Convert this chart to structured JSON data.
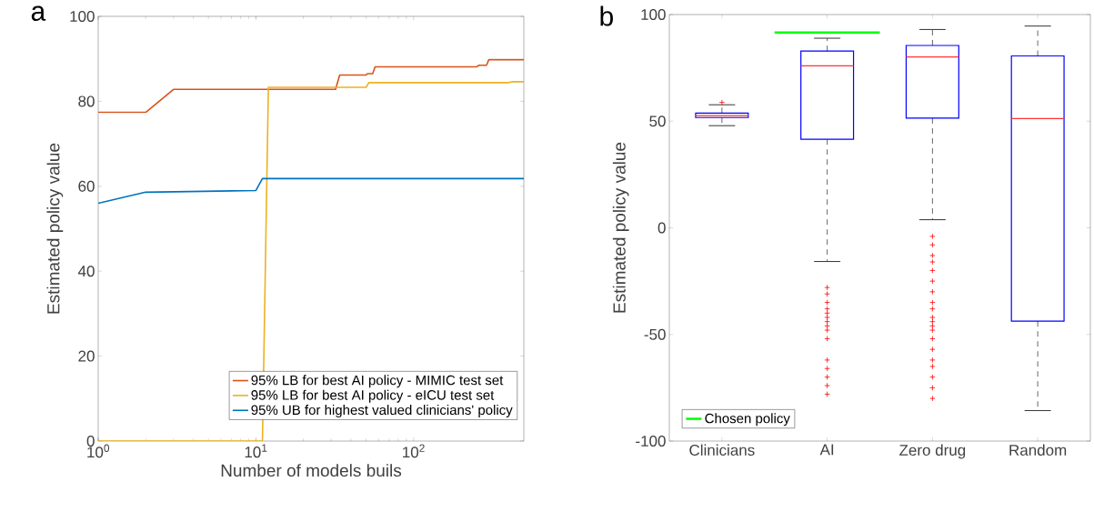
{
  "chart_data": [
    {
      "type": "line",
      "xlabel": "Number of models buils",
      "ylabel": "Estimated policy value",
      "log": "x",
      "xlim": [
        1,
        500
      ],
      "xticks": [
        {
          "value": 1,
          "label": "10$^{0}$"
        },
        {
          "value": 10,
          "label": "10$^{1}$"
        },
        {
          "value": 100,
          "label": "10$^{2}$"
        }
      ],
      "ylim": [
        0,
        100
      ],
      "yticks": [
        0,
        20,
        40,
        60,
        80,
        100
      ],
      "legend": "bottom right",
      "annotations": [
        "a"
      ],
      "series": [
        {
          "name": "95% LB for best AI policy - MIMIC test set",
          "color": "#d95319",
          "x": [
            1,
            2,
            3,
            32,
            34,
            50,
            51,
            55,
            57,
            250,
            260,
            290,
            300,
            500
          ],
          "values": [
            77.4,
            77.4,
            82.8,
            82.8,
            86.2,
            86.2,
            86.5,
            86.5,
            88.1,
            88.1,
            88.5,
            88.5,
            89.8,
            89.8
          ]
        },
        {
          "name": "95% LB for best AI policy - eICU test set",
          "color": "#edb120",
          "x": [
            1,
            11,
            12,
            50,
            52,
            400,
            420,
            500
          ],
          "values": [
            0,
            0,
            83.3,
            83.3,
            84.4,
            84.4,
            84.6,
            84.6
          ]
        },
        {
          "name": "95% UB for highest valued clinicians' policy",
          "color": "#0072bd",
          "x": [
            1,
            2,
            10,
            11,
            500
          ],
          "values": [
            56,
            58.6,
            59,
            61.8,
            61.8
          ]
        }
      ]
    },
    {
      "type": "box",
      "ylabel": "Estimated policy value",
      "categories": [
        "Clinicians",
        "AI",
        "Zero drug",
        "Random"
      ],
      "ylim": [
        -100,
        100
      ],
      "yticks": [
        -100,
        -50,
        0,
        50,
        100
      ],
      "legend": "bottom left",
      "annotations": [
        "b"
      ],
      "series": [
        {
          "type": "box",
          "color": "#0000ff",
          "marker": "cross",
          "boxes": [
            {
              "low": 47.9,
              "q1": 51.7,
              "median": 52.6,
              "q3": 53.8,
              "high": 57.7,
              "outliers": [
                58.8
              ]
            },
            {
              "low": -15.8,
              "q1": 41.5,
              "median": 76,
              "q3": 82.9,
              "high": 88.9,
              "outliers": [
                -28,
                -31,
                -35,
                -38,
                -40,
                -42,
                -44,
                -46,
                -48,
                -52,
                -62,
                -66,
                -70,
                -74,
                -78
              ]
            },
            {
              "low": 3.8,
              "q1": 51.4,
              "median": 80.1,
              "q3": 85.5,
              "high": 93,
              "outliers": [
                -4,
                -8,
                -13,
                -16,
                -20,
                -25,
                -30,
                -35,
                -38,
                -42,
                -44,
                -46,
                -48,
                -52,
                -57,
                -62,
                -65,
                -70,
                -75,
                -80
              ]
            },
            {
              "low": -85.7,
              "q1": -43.8,
              "median": 51.2,
              "q3": 80.6,
              "high": 94.6
            }
          ]
        }
      ],
      "ref_lines": [
        {
          "axis": "y",
          "value": 91.6,
          "label": "Chosen policy",
          "color": "#00ff00"
        }
      ]
    }
  ]
}
